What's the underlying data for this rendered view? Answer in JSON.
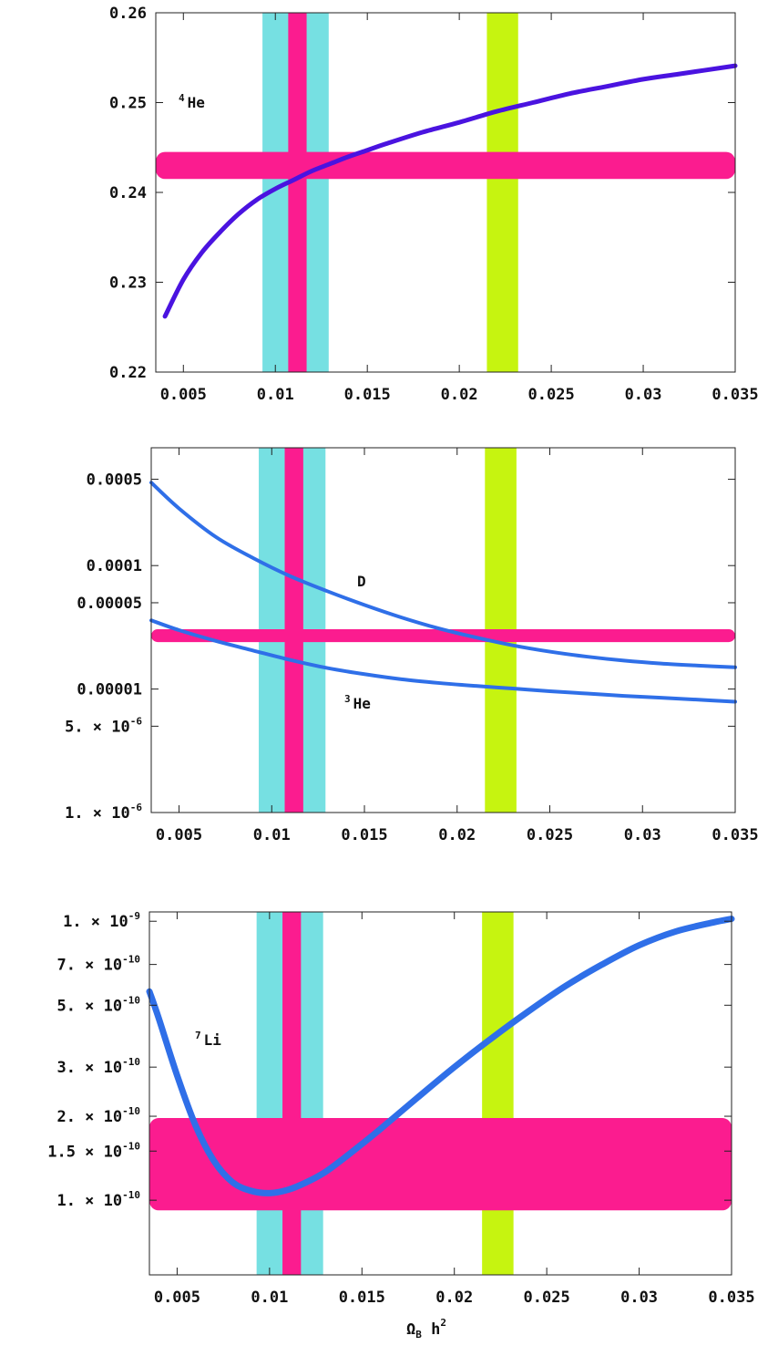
{
  "chart_data": [
    {
      "type": "line",
      "yscale": "linear",
      "xlim": [
        0.0035,
        0.035
      ],
      "ylim": [
        0.22,
        0.26
      ],
      "x_ticks": [
        "0.005",
        "0.01",
        "0.015",
        "0.02",
        "0.025",
        "0.03",
        "0.035"
      ],
      "y_ticks": [
        "0.22",
        "0.23",
        "0.24",
        "0.25",
        "0.26"
      ],
      "xlabel": "",
      "ylabel": "",
      "annotations": [
        {
          "sup": "4",
          "text": "He"
        }
      ],
      "bands": {
        "vertical": [
          {
            "from": 0.0093,
            "to": 0.0129,
            "color": "#76e0e2"
          },
          {
            "from": 0.0107,
            "to": 0.0117,
            "color": "#fb1c8f"
          },
          {
            "from": 0.0215,
            "to": 0.0232,
            "color": "#c6f410"
          }
        ],
        "horizontal": [
          {
            "from": 0.2415,
            "to": 0.2445,
            "color": "#fb1c8f"
          }
        ]
      },
      "series": [
        {
          "color": "#4a13e0",
          "x": [
            0.004,
            0.005,
            0.006,
            0.007,
            0.008,
            0.009,
            0.01,
            0.011,
            0.012,
            0.013,
            0.014,
            0.015,
            0.016,
            0.018,
            0.02,
            0.022,
            0.024,
            0.026,
            0.028,
            0.03,
            0.032,
            0.035
          ],
          "y": [
            0.2262,
            0.2303,
            0.2333,
            0.2356,
            0.2376,
            0.2392,
            0.2404,
            0.2414,
            0.2424,
            0.2432,
            0.244,
            0.2447,
            0.2454,
            0.2467,
            0.2478,
            0.249,
            0.25,
            0.251,
            0.2518,
            0.2526,
            0.2532,
            0.2541
          ]
        }
      ]
    },
    {
      "type": "line",
      "yscale": "log",
      "xlim": [
        0.0035,
        0.035
      ],
      "ylim": [
        1e-06,
        0.0009
      ],
      "x_ticks": [
        "0.005",
        "0.01",
        "0.015",
        "0.02",
        "0.025",
        "0.03",
        "0.035"
      ],
      "y_ticks": [
        {
          "value": 0.0005,
          "label": "0.0005"
        },
        {
          "value": 0.0001,
          "label": "0.0001"
        },
        {
          "value": 5e-05,
          "label": "0.00005"
        },
        {
          "value": 1e-05,
          "label": "0.00001"
        },
        {
          "value": 5e-06,
          "mant": "5.",
          "exp": "-6"
        },
        {
          "value": 1e-06,
          "mant": "1.",
          "exp": "-6"
        }
      ],
      "xlabel": "",
      "ylabel": "",
      "annotations": [
        {
          "sup": "",
          "text": "D"
        },
        {
          "sup": "3",
          "text": "He"
        }
      ],
      "bands": {
        "vertical": [
          {
            "from": 0.0093,
            "to": 0.0129,
            "color": "#76e0e2"
          },
          {
            "from": 0.0107,
            "to": 0.0117,
            "color": "#fb1c8f"
          },
          {
            "from": 0.0215,
            "to": 0.0232,
            "color": "#c6f410"
          }
        ],
        "horizontal": [
          {
            "from": 2.4e-05,
            "to": 3.05e-05,
            "color": "#fb1c8f"
          }
        ]
      },
      "series": [
        {
          "color": "#2f6fe8",
          "x": [
            0.0035,
            0.005,
            0.007,
            0.009,
            0.011,
            0.013,
            0.015,
            0.017,
            0.019,
            0.021,
            0.023,
            0.025,
            0.027,
            0.029,
            0.031,
            0.033,
            0.035
          ],
          "y": [
            0.00047,
            0.00029,
            0.00017,
            0.000115,
            8.2e-05,
            6.2e-05,
            4.8e-05,
            3.8e-05,
            3.1e-05,
            2.62e-05,
            2.26e-05,
            2.01e-05,
            1.83e-05,
            1.7e-05,
            1.61e-05,
            1.55e-05,
            1.5e-05
          ]
        },
        {
          "color": "#2f6fe8",
          "x": [
            0.0035,
            0.005,
            0.007,
            0.009,
            0.011,
            0.013,
            0.015,
            0.017,
            0.019,
            0.021,
            0.023,
            0.025,
            0.027,
            0.029,
            0.031,
            0.033,
            0.035
          ],
          "y": [
            3.6e-05,
            3e-05,
            2.45e-05,
            2.05e-05,
            1.72e-05,
            1.48e-05,
            1.32e-05,
            1.2e-05,
            1.12e-05,
            1.06e-05,
            1.01e-05,
            9.6e-06,
            9.2e-06,
            8.8e-06,
            8.5e-06,
            8.2e-06,
            7.9e-06
          ]
        }
      ]
    },
    {
      "type": "line",
      "yscale": "log",
      "xlim": [
        0.0035,
        0.035
      ],
      "ylim": [
        5.4e-11,
        1.08e-09
      ],
      "x_ticks": [
        "0.005",
        "0.01",
        "0.015",
        "0.02",
        "0.025",
        "0.03",
        "0.035"
      ],
      "y_ticks": [
        {
          "value": 1e-09,
          "mant": "1.",
          "exp": "-9"
        },
        {
          "value": 7e-10,
          "mant": "7.",
          "exp": "-10"
        },
        {
          "value": 5e-10,
          "mant": "5.",
          "exp": "-10"
        },
        {
          "value": 3e-10,
          "mant": "3.",
          "exp": "-10"
        },
        {
          "value": 2e-10,
          "mant": "2.",
          "exp": "-10"
        },
        {
          "value": 1.5e-10,
          "mant": "1.5",
          "exp": "-10"
        },
        {
          "value": 1e-10,
          "mant": "1.",
          "exp": "-10"
        }
      ],
      "xlabel": "Ω_B h^2",
      "xlabel_parts": {
        "main": "Ω",
        "sub": "B",
        "mid": " h",
        "sup": "2"
      },
      "ylabel": "",
      "annotations": [
        {
          "sup": "7",
          "text": "Li"
        }
      ],
      "bands": {
        "vertical": [
          {
            "from": 0.0093,
            "to": 0.0129,
            "color": "#76e0e2"
          },
          {
            "from": 0.0107,
            "to": 0.0117,
            "color": "#fb1c8f"
          },
          {
            "from": 0.0215,
            "to": 0.0232,
            "color": "#c6f410"
          }
        ],
        "horizontal": [
          {
            "from": 9.2e-11,
            "to": 1.97e-10,
            "color": "#fb1c8f"
          }
        ]
      },
      "series": [
        {
          "color": "#2f6fe8",
          "x": [
            0.0035,
            0.004,
            0.005,
            0.006,
            0.007,
            0.008,
            0.009,
            0.01,
            0.011,
            0.012,
            0.013,
            0.014,
            0.015,
            0.016,
            0.018,
            0.02,
            0.022,
            0.024,
            0.026,
            0.028,
            0.03,
            0.032,
            0.034,
            0.035
          ],
          "y": [
            5.6e-10,
            4.5e-10,
            2.8e-10,
            1.85e-10,
            1.38e-10,
            1.16e-10,
            1.08e-10,
            1.06e-10,
            1.09e-10,
            1.16e-10,
            1.26e-10,
            1.41e-10,
            1.59e-10,
            1.8e-10,
            2.33e-10,
            3e-10,
            3.8e-10,
            4.75e-10,
            5.85e-10,
            7e-10,
            8.2e-10,
            9.2e-10,
            9.9e-10,
            1.02e-09
          ]
        }
      ]
    }
  ]
}
